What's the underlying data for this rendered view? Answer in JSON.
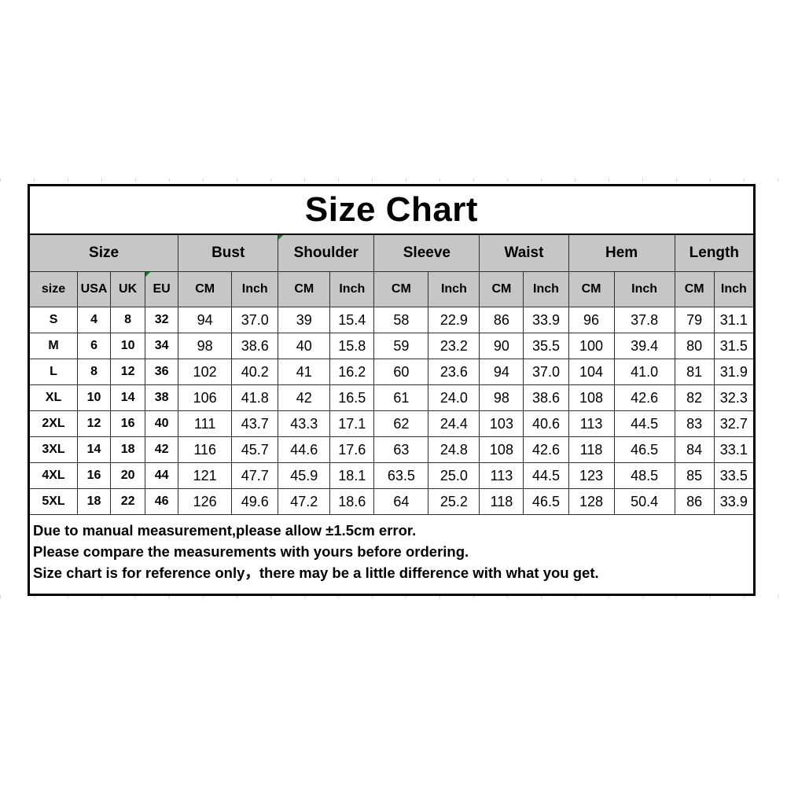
{
  "chart_data": {
    "type": "table",
    "title": "Size Chart",
    "column_groups": [
      {
        "label": "Size",
        "span": 4
      },
      {
        "label": "Bust",
        "span": 2
      },
      {
        "label": "Shoulder",
        "span": 2
      },
      {
        "label": "Sleeve",
        "span": 2
      },
      {
        "label": "Waist",
        "span": 2
      },
      {
        "label": "Hem",
        "span": 2
      },
      {
        "label": "Length",
        "span": 2
      }
    ],
    "columns": [
      "size",
      "USA",
      "UK",
      "EU",
      "CM",
      "Inch",
      "CM",
      "Inch",
      "CM",
      "Inch",
      "CM",
      "Inch",
      "CM",
      "Inch",
      "CM",
      "Inch"
    ],
    "rows": [
      [
        "S",
        "4",
        "8",
        "32",
        "94",
        "37.0",
        "39",
        "15.4",
        "58",
        "22.9",
        "86",
        "33.9",
        "96",
        "37.8",
        "79",
        "31.1"
      ],
      [
        "M",
        "6",
        "10",
        "34",
        "98",
        "38.6",
        "40",
        "15.8",
        "59",
        "23.2",
        "90",
        "35.5",
        "100",
        "39.4",
        "80",
        "31.5"
      ],
      [
        "L",
        "8",
        "12",
        "36",
        "102",
        "40.2",
        "41",
        "16.2",
        "60",
        "23.6",
        "94",
        "37.0",
        "104",
        "41.0",
        "81",
        "31.9"
      ],
      [
        "XL",
        "10",
        "14",
        "38",
        "106",
        "41.8",
        "42",
        "16.5",
        "61",
        "24.0",
        "98",
        "38.6",
        "108",
        "42.6",
        "82",
        "32.3"
      ],
      [
        "2XL",
        "12",
        "16",
        "40",
        "111",
        "43.7",
        "43.3",
        "17.1",
        "62",
        "24.4",
        "103",
        "40.6",
        "113",
        "44.5",
        "83",
        "32.7"
      ],
      [
        "3XL",
        "14",
        "18",
        "42",
        "116",
        "45.7",
        "44.6",
        "17.6",
        "63",
        "24.8",
        "108",
        "42.6",
        "118",
        "46.5",
        "84",
        "33.1"
      ],
      [
        "4XL",
        "16",
        "20",
        "44",
        "121",
        "47.7",
        "45.9",
        "18.1",
        "63.5",
        "25.0",
        "113",
        "44.5",
        "123",
        "48.5",
        "85",
        "33.5"
      ],
      [
        "5XL",
        "18",
        "22",
        "46",
        "126",
        "49.6",
        "47.2",
        "18.6",
        "64",
        "25.2",
        "118",
        "46.5",
        "128",
        "50.4",
        "86",
        "33.9"
      ]
    ],
    "notes": [
      "Due to manual measurement,please allow ±1.5cm error.",
      "Please compare the measurements with yours before ordering.",
      "Size chart is for reference only，there may be a little difference with what you get."
    ],
    "layout_hints": {
      "header_bg": "#c6c6c6",
      "body_bg": "#ffffff",
      "grid_line_color": "#2f2f2f",
      "outer_border_color": "#000000",
      "comment_marker_color": "#008000"
    }
  }
}
